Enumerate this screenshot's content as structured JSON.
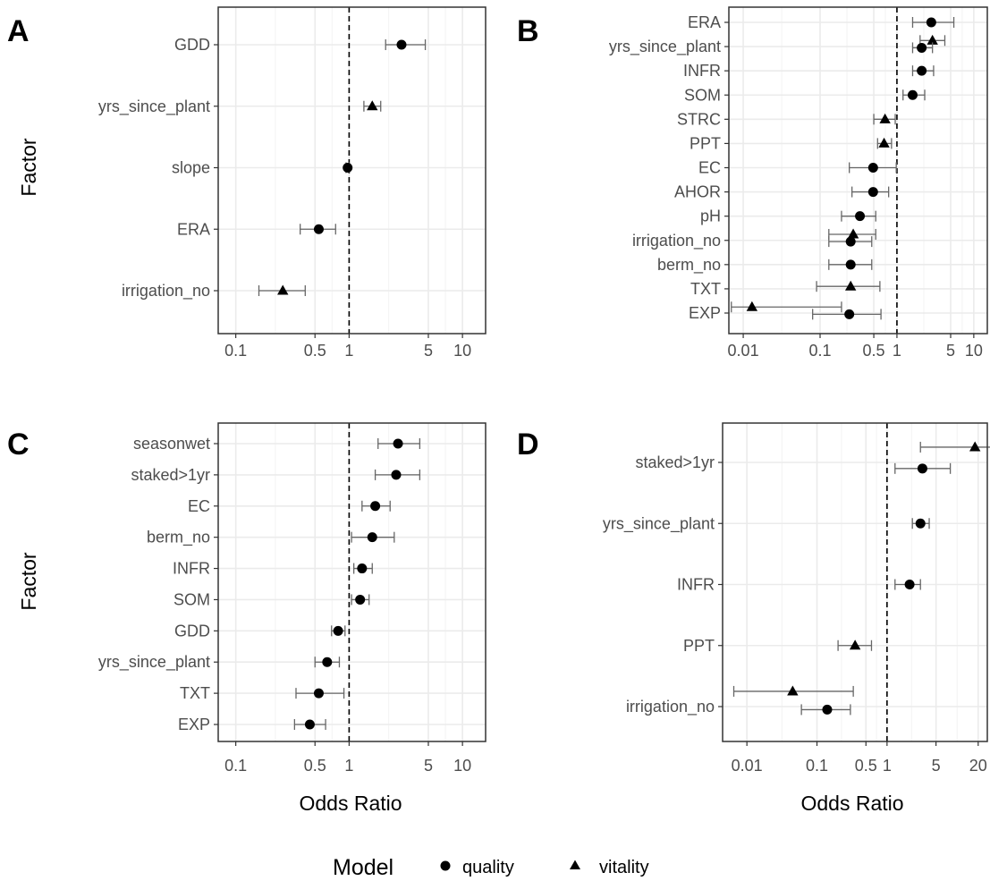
{
  "chart_data": [
    {
      "panel": "A",
      "type": "scatter",
      "xlabel": "",
      "ylabel": "Factor",
      "x_scale": "log",
      "xlim": [
        0.07,
        16
      ],
      "x_ticks": [
        0.1,
        0.5,
        1,
        5,
        10
      ],
      "x_tick_labels": [
        "0.1",
        "0.5",
        "1",
        "5",
        "10"
      ],
      "reference_line": 1,
      "grid": true,
      "factors": [
        "GDD",
        "yrs_since_plant",
        "slope",
        "ERA",
        "irrigation_no"
      ],
      "points": [
        {
          "factor": "GDD",
          "model": "quality",
          "estimate": 2.9,
          "lower": 2.1,
          "upper": 4.7,
          "offset": 0
        },
        {
          "factor": "yrs_since_plant",
          "model": "vitality",
          "estimate": 1.6,
          "lower": 1.35,
          "upper": 1.9,
          "offset": 0
        },
        {
          "factor": "slope",
          "model": "quality",
          "estimate": 0.97,
          "lower": 0.94,
          "upper": 1.0,
          "offset": 0
        },
        {
          "factor": "ERA",
          "model": "quality",
          "estimate": 0.54,
          "lower": 0.37,
          "upper": 0.76,
          "offset": 0
        },
        {
          "factor": "irrigation_no",
          "model": "vitality",
          "estimate": 0.26,
          "lower": 0.16,
          "upper": 0.41,
          "offset": 0
        }
      ]
    },
    {
      "panel": "B",
      "type": "scatter",
      "xlabel": "",
      "ylabel": "",
      "x_scale": "log",
      "xlim": [
        0.0065,
        15
      ],
      "x_ticks": [
        0.01,
        0.1,
        0.5,
        1,
        5,
        10
      ],
      "x_tick_labels": [
        "0.01",
        "0.1",
        "0.5",
        "1",
        "5",
        "10"
      ],
      "reference_line": 1,
      "grid": true,
      "factors": [
        "ERA",
        "yrs_since_plant",
        "INFR",
        "SOM",
        "STRC",
        "PPT",
        "EC",
        "AHOR",
        "pH",
        "irrigation_no",
        "berm_no",
        "TXT",
        "EXP"
      ],
      "points": [
        {
          "factor": "ERA",
          "model": "quality",
          "estimate": 2.8,
          "lower": 1.6,
          "upper": 5.5,
          "offset": 0
        },
        {
          "factor": "yrs_since_plant",
          "model": "vitality",
          "estimate": 2.9,
          "lower": 2.0,
          "upper": 4.2,
          "offset": -0.25
        },
        {
          "factor": "yrs_since_plant",
          "model": "quality",
          "estimate": 2.1,
          "lower": 1.6,
          "upper": 2.9,
          "offset": 0.05
        },
        {
          "factor": "INFR",
          "model": "quality",
          "estimate": 2.1,
          "lower": 1.6,
          "upper": 3.0,
          "offset": 0
        },
        {
          "factor": "SOM",
          "model": "quality",
          "estimate": 1.6,
          "lower": 1.2,
          "upper": 2.3,
          "offset": 0
        },
        {
          "factor": "STRC",
          "model": "vitality",
          "estimate": 0.7,
          "lower": 0.5,
          "upper": 0.95,
          "offset": 0
        },
        {
          "factor": "PPT",
          "model": "vitality",
          "estimate": 0.68,
          "lower": 0.56,
          "upper": 0.85,
          "offset": 0
        },
        {
          "factor": "EC",
          "model": "quality",
          "estimate": 0.49,
          "lower": 0.24,
          "upper": 0.98,
          "offset": 0
        },
        {
          "factor": "AHOR",
          "model": "quality",
          "estimate": 0.49,
          "lower": 0.26,
          "upper": 0.78,
          "offset": 0
        },
        {
          "factor": "pH",
          "model": "quality",
          "estimate": 0.33,
          "lower": 0.19,
          "upper": 0.53,
          "offset": 0
        },
        {
          "factor": "irrigation_no",
          "model": "vitality",
          "estimate": 0.27,
          "lower": 0.13,
          "upper": 0.53,
          "offset": -0.25
        },
        {
          "factor": "irrigation_no",
          "model": "quality",
          "estimate": 0.25,
          "lower": 0.13,
          "upper": 0.47,
          "offset": 0.05
        },
        {
          "factor": "berm_no",
          "model": "quality",
          "estimate": 0.25,
          "lower": 0.13,
          "upper": 0.47,
          "offset": 0
        },
        {
          "factor": "TXT",
          "model": "vitality",
          "estimate": 0.25,
          "lower": 0.09,
          "upper": 0.6,
          "offset": -0.1
        },
        {
          "factor": "EXP",
          "model": "vitality",
          "estimate": 0.013,
          "lower": 0.007,
          "upper": 0.19,
          "offset": -0.25
        },
        {
          "factor": "EXP",
          "model": "quality",
          "estimate": 0.24,
          "lower": 0.08,
          "upper": 0.62,
          "offset": 0.05
        }
      ]
    },
    {
      "panel": "C",
      "type": "scatter",
      "xlabel": "Odds Ratio",
      "ylabel": "Factor",
      "x_scale": "log",
      "xlim": [
        0.07,
        16
      ],
      "x_ticks": [
        0.1,
        0.5,
        1,
        5,
        10
      ],
      "x_tick_labels": [
        "0.1",
        "0.5",
        "1",
        "5",
        "10"
      ],
      "reference_line": 1,
      "grid": true,
      "factors": [
        "seasonwet",
        "staked>1yr",
        "EC",
        "berm_no",
        "INFR",
        "SOM",
        "GDD",
        "yrs_since_plant",
        "TXT",
        "EXP"
      ],
      "points": [
        {
          "factor": "seasonwet",
          "model": "quality",
          "estimate": 2.7,
          "lower": 1.8,
          "upper": 4.2,
          "offset": 0
        },
        {
          "factor": "staked>1yr",
          "model": "quality",
          "estimate": 2.6,
          "lower": 1.7,
          "upper": 4.2,
          "offset": 0
        },
        {
          "factor": "EC",
          "model": "quality",
          "estimate": 1.7,
          "lower": 1.3,
          "upper": 2.3,
          "offset": 0
        },
        {
          "factor": "berm_no",
          "model": "quality",
          "estimate": 1.6,
          "lower": 1.05,
          "upper": 2.5,
          "offset": 0
        },
        {
          "factor": "INFR",
          "model": "quality",
          "estimate": 1.3,
          "lower": 1.1,
          "upper": 1.6,
          "offset": 0
        },
        {
          "factor": "SOM",
          "model": "quality",
          "estimate": 1.25,
          "lower": 1.05,
          "upper": 1.5,
          "offset": 0
        },
        {
          "factor": "GDD",
          "model": "quality",
          "estimate": 0.8,
          "lower": 0.7,
          "upper": 0.92,
          "offset": 0
        },
        {
          "factor": "yrs_since_plant",
          "model": "quality",
          "estimate": 0.64,
          "lower": 0.5,
          "upper": 0.82,
          "offset": 0
        },
        {
          "factor": "TXT",
          "model": "quality",
          "estimate": 0.54,
          "lower": 0.34,
          "upper": 0.9,
          "offset": 0
        },
        {
          "factor": "EXP",
          "model": "quality",
          "estimate": 0.45,
          "lower": 0.33,
          "upper": 0.62,
          "offset": 0
        }
      ]
    },
    {
      "panel": "D",
      "type": "scatter",
      "xlabel": "Odds Ratio",
      "ylabel": "",
      "x_scale": "log",
      "xlim": [
        0.0045,
        27
      ],
      "x_ticks": [
        0.01,
        0.1,
        0.5,
        1,
        5,
        20
      ],
      "x_tick_labels": [
        "0.01",
        "0.1",
        "0.5",
        "1",
        "5",
        "20"
      ],
      "reference_line": 1,
      "grid": true,
      "factors": [
        "staked>1yr",
        "yrs_since_plant",
        "INFR",
        "PPT",
        "irrigation_no"
      ],
      "points": [
        {
          "factor": "staked>1yr",
          "model": "vitality",
          "estimate": 18,
          "lower": 3.0,
          "upper": 40,
          "offset": -0.25
        },
        {
          "factor": "staked>1yr",
          "model": "quality",
          "estimate": 3.2,
          "lower": 1.3,
          "upper": 8.0,
          "offset": 0.1
        },
        {
          "factor": "yrs_since_plant",
          "model": "quality",
          "estimate": 3.0,
          "lower": 2.3,
          "upper": 4.0,
          "offset": 0
        },
        {
          "factor": "INFR",
          "model": "quality",
          "estimate": 2.1,
          "lower": 1.3,
          "upper": 3.0,
          "offset": 0
        },
        {
          "factor": "PPT",
          "model": "vitality",
          "estimate": 0.35,
          "lower": 0.2,
          "upper": 0.6,
          "offset": 0
        },
        {
          "factor": "irrigation_no",
          "model": "vitality",
          "estimate": 0.045,
          "lower": 0.0065,
          "upper": 0.33,
          "offset": -0.25
        },
        {
          "factor": "irrigation_no",
          "model": "quality",
          "estimate": 0.14,
          "lower": 0.06,
          "upper": 0.3,
          "offset": 0.05
        }
      ]
    }
  ],
  "legend": {
    "title": "Model",
    "items": [
      {
        "label": "quality",
        "shape": "circle"
      },
      {
        "label": "vitality",
        "shape": "triangle"
      }
    ],
    "position": "bottom"
  },
  "colors": {
    "point": "#000000",
    "errorbar": "#666666",
    "grid": "#ebebeb",
    "panel_border": "#333333",
    "reference_line": "#000000"
  }
}
